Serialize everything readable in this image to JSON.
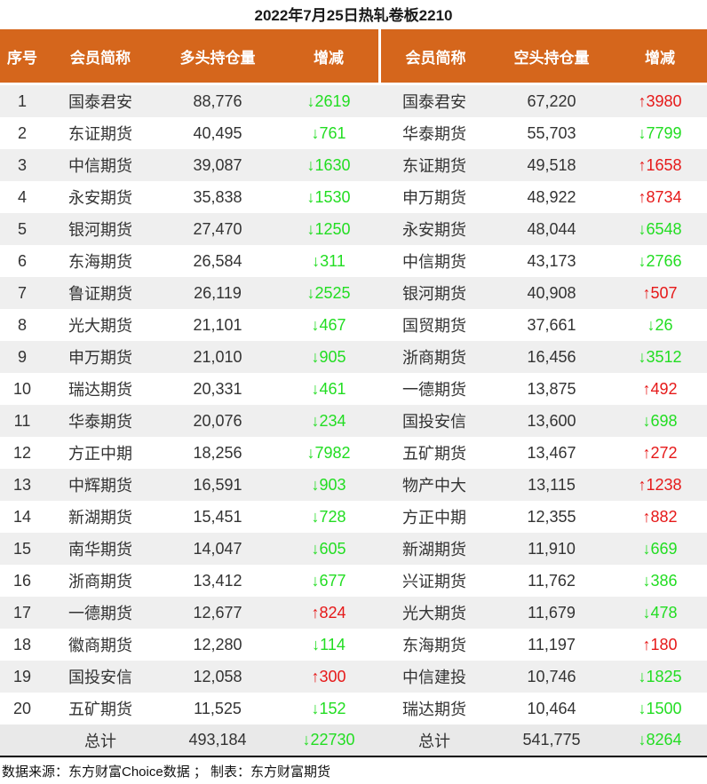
{
  "colors": {
    "header_bg": "#d5661c",
    "header_text": "#ffffff",
    "title_text": "#1a1a1a",
    "text": "#333333",
    "stripe_bg": "#efefef",
    "totals_bg": "#e9e9e9",
    "up": "#e61919",
    "down": "#22dd22"
  },
  "chart_data": {
    "type": "table",
    "title": "2022年7月25日热轧卷板2210",
    "columns": [
      "序号",
      "会员简称",
      "多头持仓量",
      "增减",
      "会员简称",
      "空头持仓量",
      "增减"
    ],
    "rows": [
      [
        "1",
        "国泰君安",
        "88,776",
        "↓2619",
        "国泰君安",
        "67,220",
        "↑3980"
      ],
      [
        "2",
        "东证期货",
        "40,495",
        "↓761",
        "华泰期货",
        "55,703",
        "↓7799"
      ],
      [
        "3",
        "中信期货",
        "39,087",
        "↓1630",
        "东证期货",
        "49,518",
        "↑1658"
      ],
      [
        "4",
        "永安期货",
        "35,838",
        "↓1530",
        "申万期货",
        "48,922",
        "↑8734"
      ],
      [
        "5",
        "银河期货",
        "27,470",
        "↓1250",
        "永安期货",
        "48,044",
        "↓6548"
      ],
      [
        "6",
        "东海期货",
        "26,584",
        "↓311",
        "中信期货",
        "43,173",
        "↓2766"
      ],
      [
        "7",
        "鲁证期货",
        "26,119",
        "↓2525",
        "银河期货",
        "40,908",
        "↑507"
      ],
      [
        "8",
        "光大期货",
        "21,101",
        "↓467",
        "国贸期货",
        "37,661",
        "↓26"
      ],
      [
        "9",
        "申万期货",
        "21,010",
        "↓905",
        "浙商期货",
        "16,456",
        "↓3512"
      ],
      [
        "10",
        "瑞达期货",
        "20,331",
        "↓461",
        "一德期货",
        "13,875",
        "↑492"
      ],
      [
        "11",
        "华泰期货",
        "20,076",
        "↓234",
        "国投安信",
        "13,600",
        "↓698"
      ],
      [
        "12",
        "方正中期",
        "18,256",
        "↓7982",
        "五矿期货",
        "13,467",
        "↑272"
      ],
      [
        "13",
        "中辉期货",
        "16,591",
        "↓903",
        "物产中大",
        "13,115",
        "↑1238"
      ],
      [
        "14",
        "新湖期货",
        "15,451",
        "↓728",
        "方正中期",
        "12,355",
        "↑882"
      ],
      [
        "15",
        "南华期货",
        "14,047",
        "↓605",
        "新湖期货",
        "11,910",
        "↓669"
      ],
      [
        "16",
        "浙商期货",
        "13,412",
        "↓677",
        "兴证期货",
        "11,762",
        "↓386"
      ],
      [
        "17",
        "一德期货",
        "12,677",
        "↑824",
        "光大期货",
        "11,679",
        "↓478"
      ],
      [
        "18",
        "徽商期货",
        "12,280",
        "↓114",
        "东海期货",
        "11,197",
        "↑180"
      ],
      [
        "19",
        "国投安信",
        "12,058",
        "↑300",
        "中信建投",
        "10,746",
        "↓1825"
      ],
      [
        "20",
        "五矿期货",
        "11,525",
        "↓152",
        "瑞达期货",
        "10,464",
        "↓1500"
      ]
    ],
    "totals": [
      "",
      "总计",
      "493,184",
      "↓22730",
      "总计",
      "541,775",
      "↓8264"
    ],
    "source_note": "数据来源：东方财富Choice数据 ； 制表：东方财富期货",
    "legend_note_up_color_means": "increase (red)",
    "legend_note_down_color_means": "decrease (green)"
  }
}
